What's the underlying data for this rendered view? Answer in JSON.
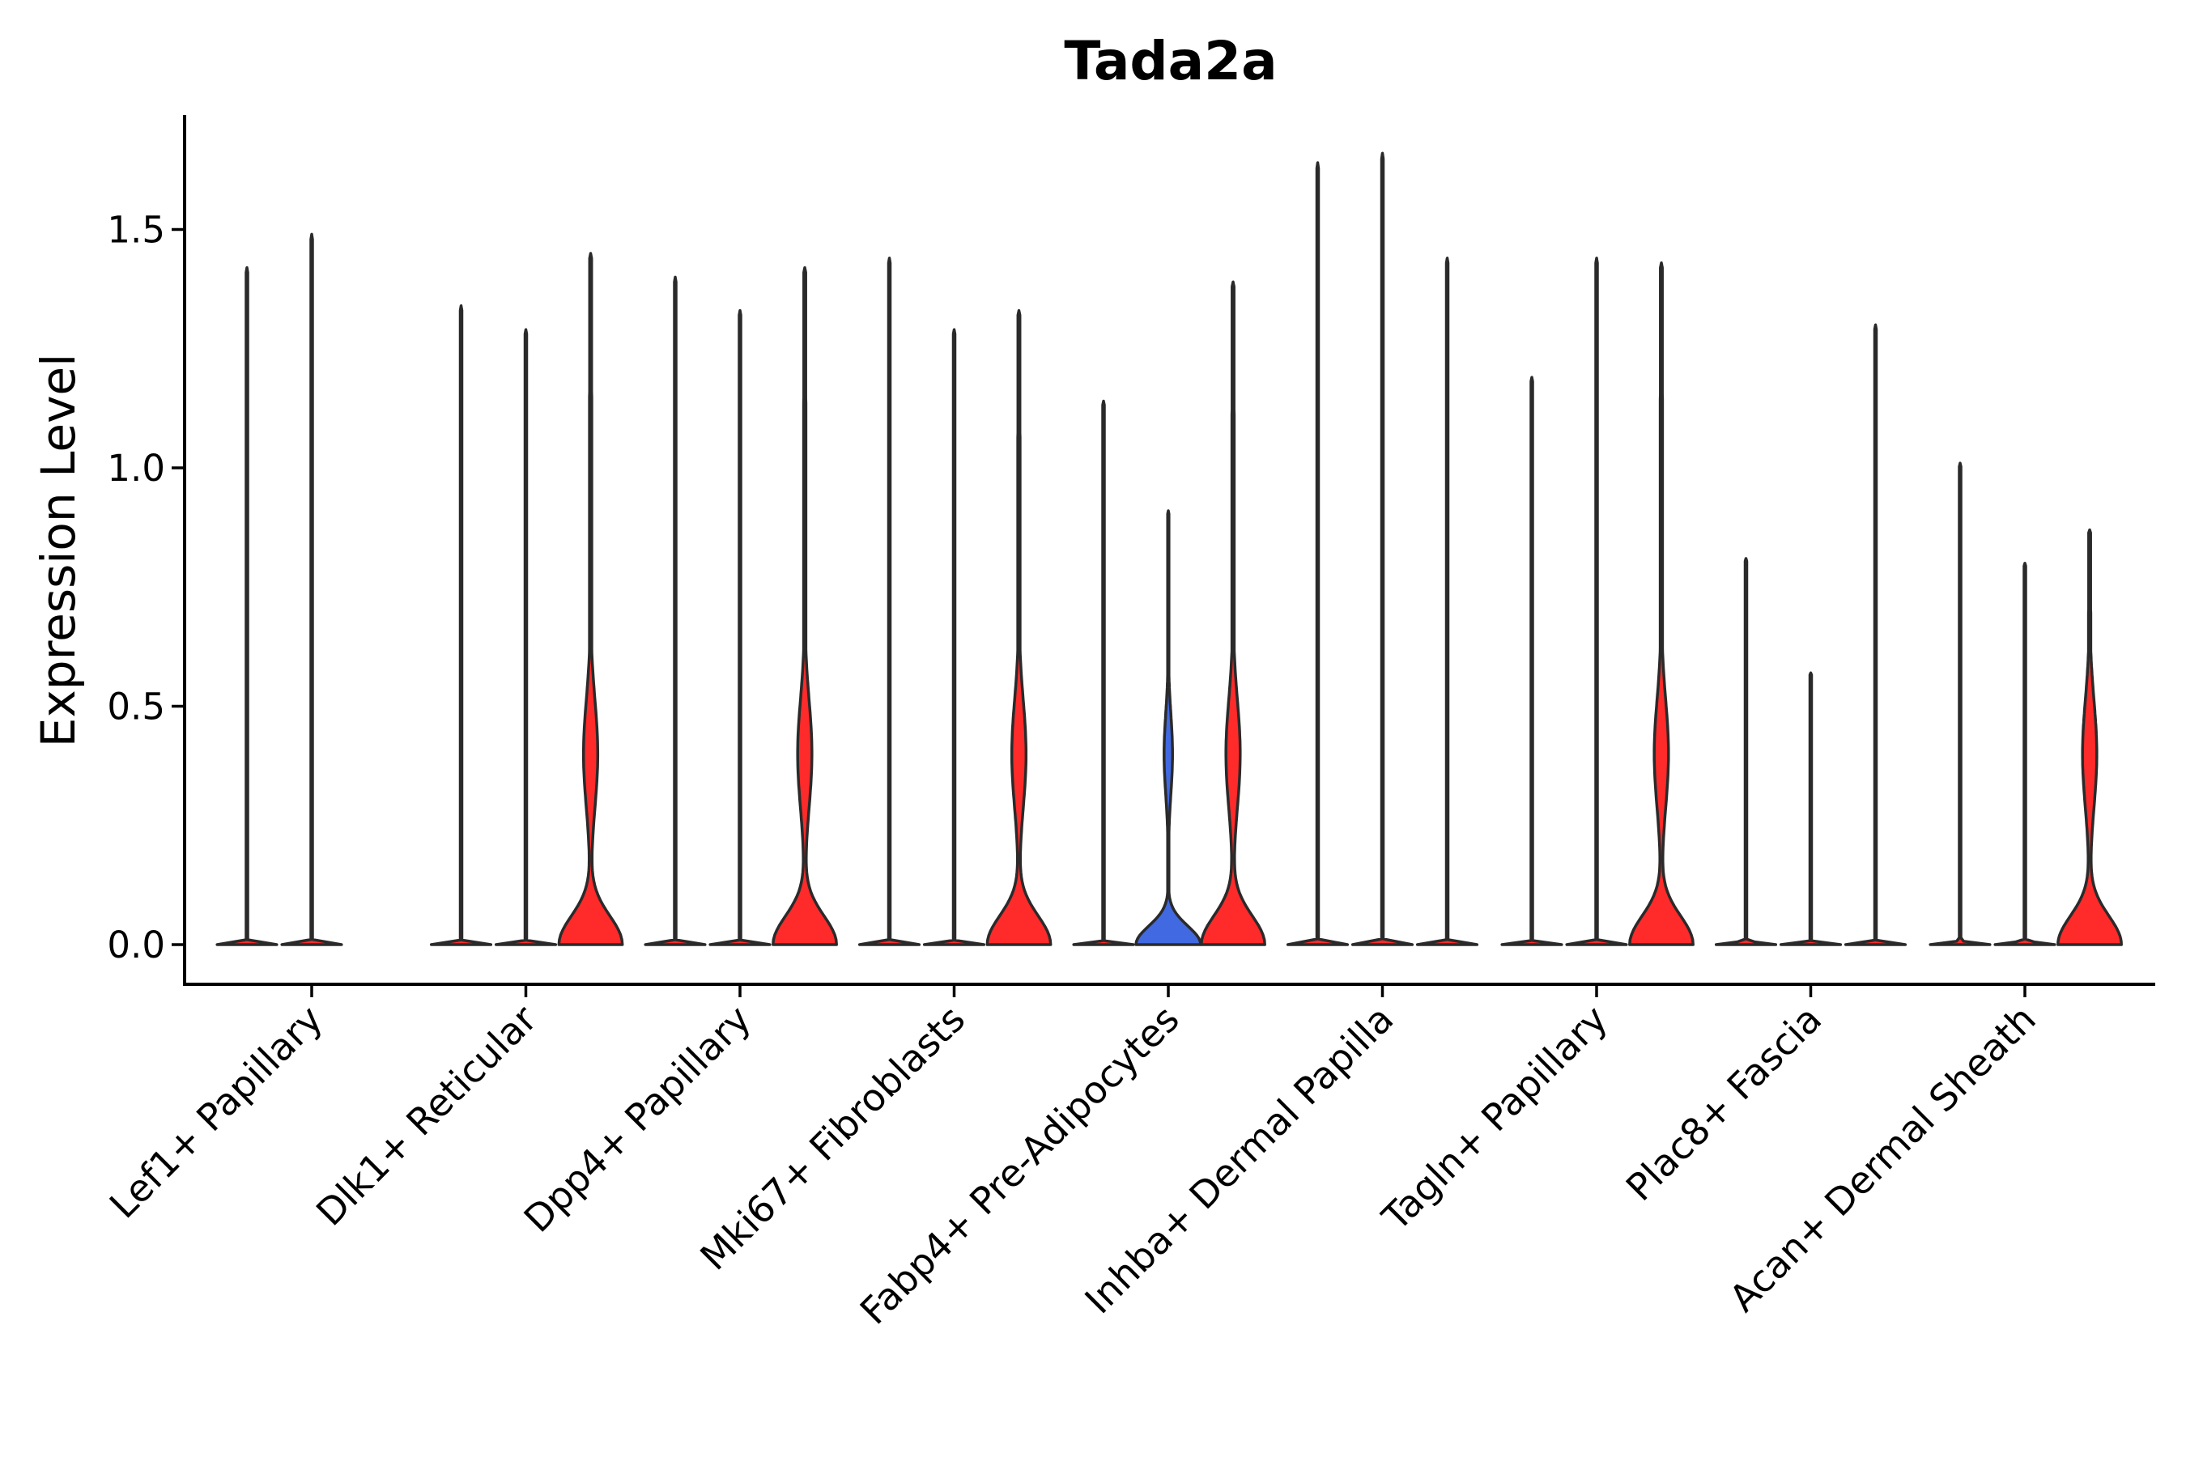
{
  "chart_data": {
    "type": "violin",
    "title": "Tada2a",
    "xlabel": "",
    "ylabel": "Expression Level",
    "ylim": [
      -0.08,
      1.75
    ],
    "yticks": [
      0.0,
      0.5,
      1.0,
      1.5
    ],
    "ytick_labels": [
      "0.0",
      "0.5",
      "1.0",
      "1.5"
    ],
    "categories": [
      "Lef1+ Papillary",
      "Dlk1+ Reticular",
      "Dpp4+ Papillary",
      "Mki67+ Fibroblasts",
      "Fabp4+ Pre-Adipocytes",
      "Inhba+ Dermal Papilla",
      "Tagln+ Papillary",
      "Plac8+ Fascia",
      "Acan+ Dermal Sheath"
    ],
    "colors": {
      "red": "#FF2A2A",
      "blue": "#4169E1",
      "outline": "#2a2a2a"
    },
    "violins": [
      {
        "category": 0,
        "slot": 0,
        "max": 1.42,
        "shape": "flat",
        "color": "red"
      },
      {
        "category": 0,
        "slot": 1,
        "max": 1.49,
        "shape": "flat",
        "color": "red"
      },
      {
        "category": 1,
        "slot": 0,
        "max": 1.34,
        "shape": "flat",
        "color": "red"
      },
      {
        "category": 1,
        "slot": 1,
        "max": 1.29,
        "shape": "flat",
        "color": "red"
      },
      {
        "category": 1,
        "slot": 2,
        "max": 1.45,
        "shape": "full",
        "color": "red"
      },
      {
        "category": 2,
        "slot": 0,
        "max": 1.4,
        "shape": "flat",
        "color": "red"
      },
      {
        "category": 2,
        "slot": 1,
        "max": 1.33,
        "shape": "flat",
        "color": "red"
      },
      {
        "category": 2,
        "slot": 2,
        "max": 1.42,
        "shape": "full",
        "color": "red"
      },
      {
        "category": 3,
        "slot": 0,
        "max": 1.44,
        "shape": "flat",
        "color": "red"
      },
      {
        "category": 3,
        "slot": 1,
        "max": 1.29,
        "shape": "flat",
        "color": "red"
      },
      {
        "category": 3,
        "slot": 2,
        "max": 1.33,
        "shape": "full",
        "color": "red"
      },
      {
        "category": 4,
        "slot": 0,
        "max": 1.14,
        "shape": "flat",
        "color": "red"
      },
      {
        "category": 4,
        "slot": 1,
        "max": 0.91,
        "shape": "small",
        "color": "blue"
      },
      {
        "category": 4,
        "slot": 2,
        "max": 1.39,
        "shape": "full",
        "color": "red"
      },
      {
        "category": 5,
        "slot": 0,
        "max": 1.64,
        "shape": "flat",
        "color": "red"
      },
      {
        "category": 5,
        "slot": 1,
        "max": 1.66,
        "shape": "flat",
        "color": "red"
      },
      {
        "category": 5,
        "slot": 2,
        "max": 1.44,
        "shape": "flat",
        "color": "red"
      },
      {
        "category": 6,
        "slot": 0,
        "max": 1.19,
        "shape": "flat",
        "color": "red"
      },
      {
        "category": 6,
        "slot": 1,
        "max": 1.44,
        "shape": "flat",
        "color": "red"
      },
      {
        "category": 6,
        "slot": 2,
        "max": 1.43,
        "shape": "full",
        "color": "red"
      },
      {
        "category": 7,
        "slot": 0,
        "max": 0.81,
        "shape": "flat",
        "color": "red"
      },
      {
        "category": 7,
        "slot": 1,
        "max": 0.57,
        "shape": "flat",
        "color": "red"
      },
      {
        "category": 7,
        "slot": 2,
        "max": 1.3,
        "shape": "flat",
        "color": "red"
      },
      {
        "category": 8,
        "slot": 0,
        "max": 1.01,
        "shape": "flat",
        "color": "red"
      },
      {
        "category": 8,
        "slot": 1,
        "max": 0.8,
        "shape": "flat",
        "color": "red"
      },
      {
        "category": 8,
        "slot": 2,
        "max": 0.87,
        "shape": "full",
        "color": "red"
      }
    ]
  }
}
